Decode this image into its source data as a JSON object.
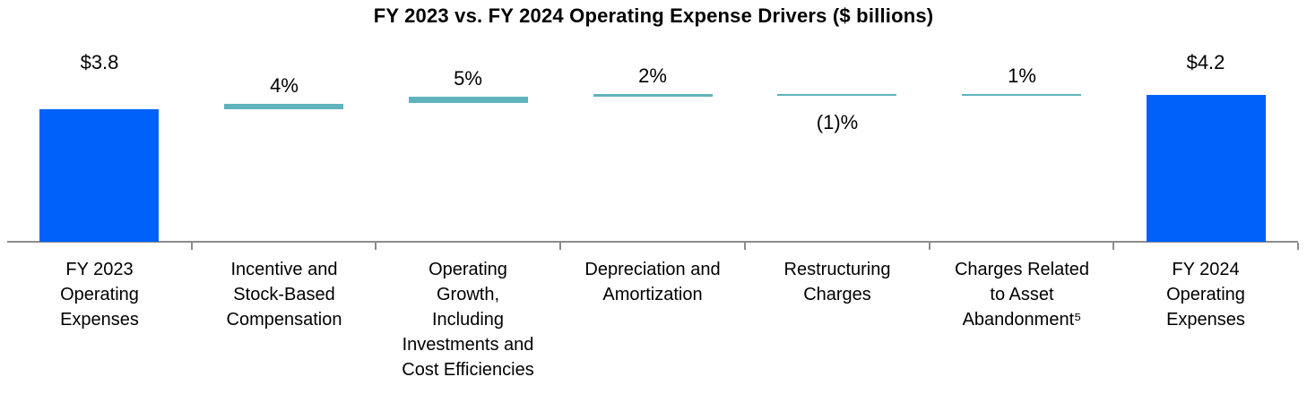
{
  "title": "FY 2023 vs. FY 2024 Operating Expense Drivers ($ billions)",
  "chart_data": {
    "type": "bar",
    "subtype": "waterfall",
    "title": "FY 2023 vs. FY 2024 Operating Expense Drivers ($ billions)",
    "unit": "$ billions",
    "start_total_billions": 3.8,
    "end_total_billions": 4.2,
    "legend": "none",
    "grid": "off",
    "colors": {
      "total_bar": "#0061fa",
      "delta_bar": "#5fb3bc",
      "axis": "#8c8c8c",
      "text": "#000000"
    },
    "items": [
      {
        "category": "FY 2023 Operating Expenses",
        "label_lines": "FY 2023\nOperating\nExpenses",
        "kind": "total",
        "amount_billions": 3.8,
        "value_label": "$3.8",
        "label_position": "above"
      },
      {
        "category": "Incentive and Stock-Based Compensation",
        "label_lines": "Incentive and\nStock-Based\nCompensation",
        "kind": "delta",
        "pct_change": 4,
        "value_label": "4%",
        "label_position": "above"
      },
      {
        "category": "Operating Growth, Including Investments and Cost Efficiencies",
        "label_lines": "Operating\nGrowth,\nIncluding\nInvestments and\nCost Efficiencies",
        "kind": "delta",
        "pct_change": 5,
        "value_label": "5%",
        "label_position": "above"
      },
      {
        "category": "Depreciation and Amortization",
        "label_lines": "Depreciation and\nAmortization",
        "kind": "delta",
        "pct_change": 2,
        "value_label": "2%",
        "label_position": "above"
      },
      {
        "category": "Restructuring Charges",
        "label_lines": "Restructuring\nCharges",
        "kind": "delta",
        "pct_change": -1,
        "value_label": "(1)%",
        "label_position": "below"
      },
      {
        "category": "Charges Related to Asset Abandonment⁵",
        "label_lines": "Charges Related\nto Asset\nAbandonment⁵",
        "kind": "delta",
        "pct_change": 1,
        "value_label": "1%",
        "label_position": "above"
      },
      {
        "category": "FY 2024 Operating Expenses",
        "label_lines": "FY 2024\nOperating\nExpenses",
        "kind": "total",
        "amount_billions": 4.2,
        "value_label": "$4.2",
        "label_position": "above"
      }
    ]
  }
}
